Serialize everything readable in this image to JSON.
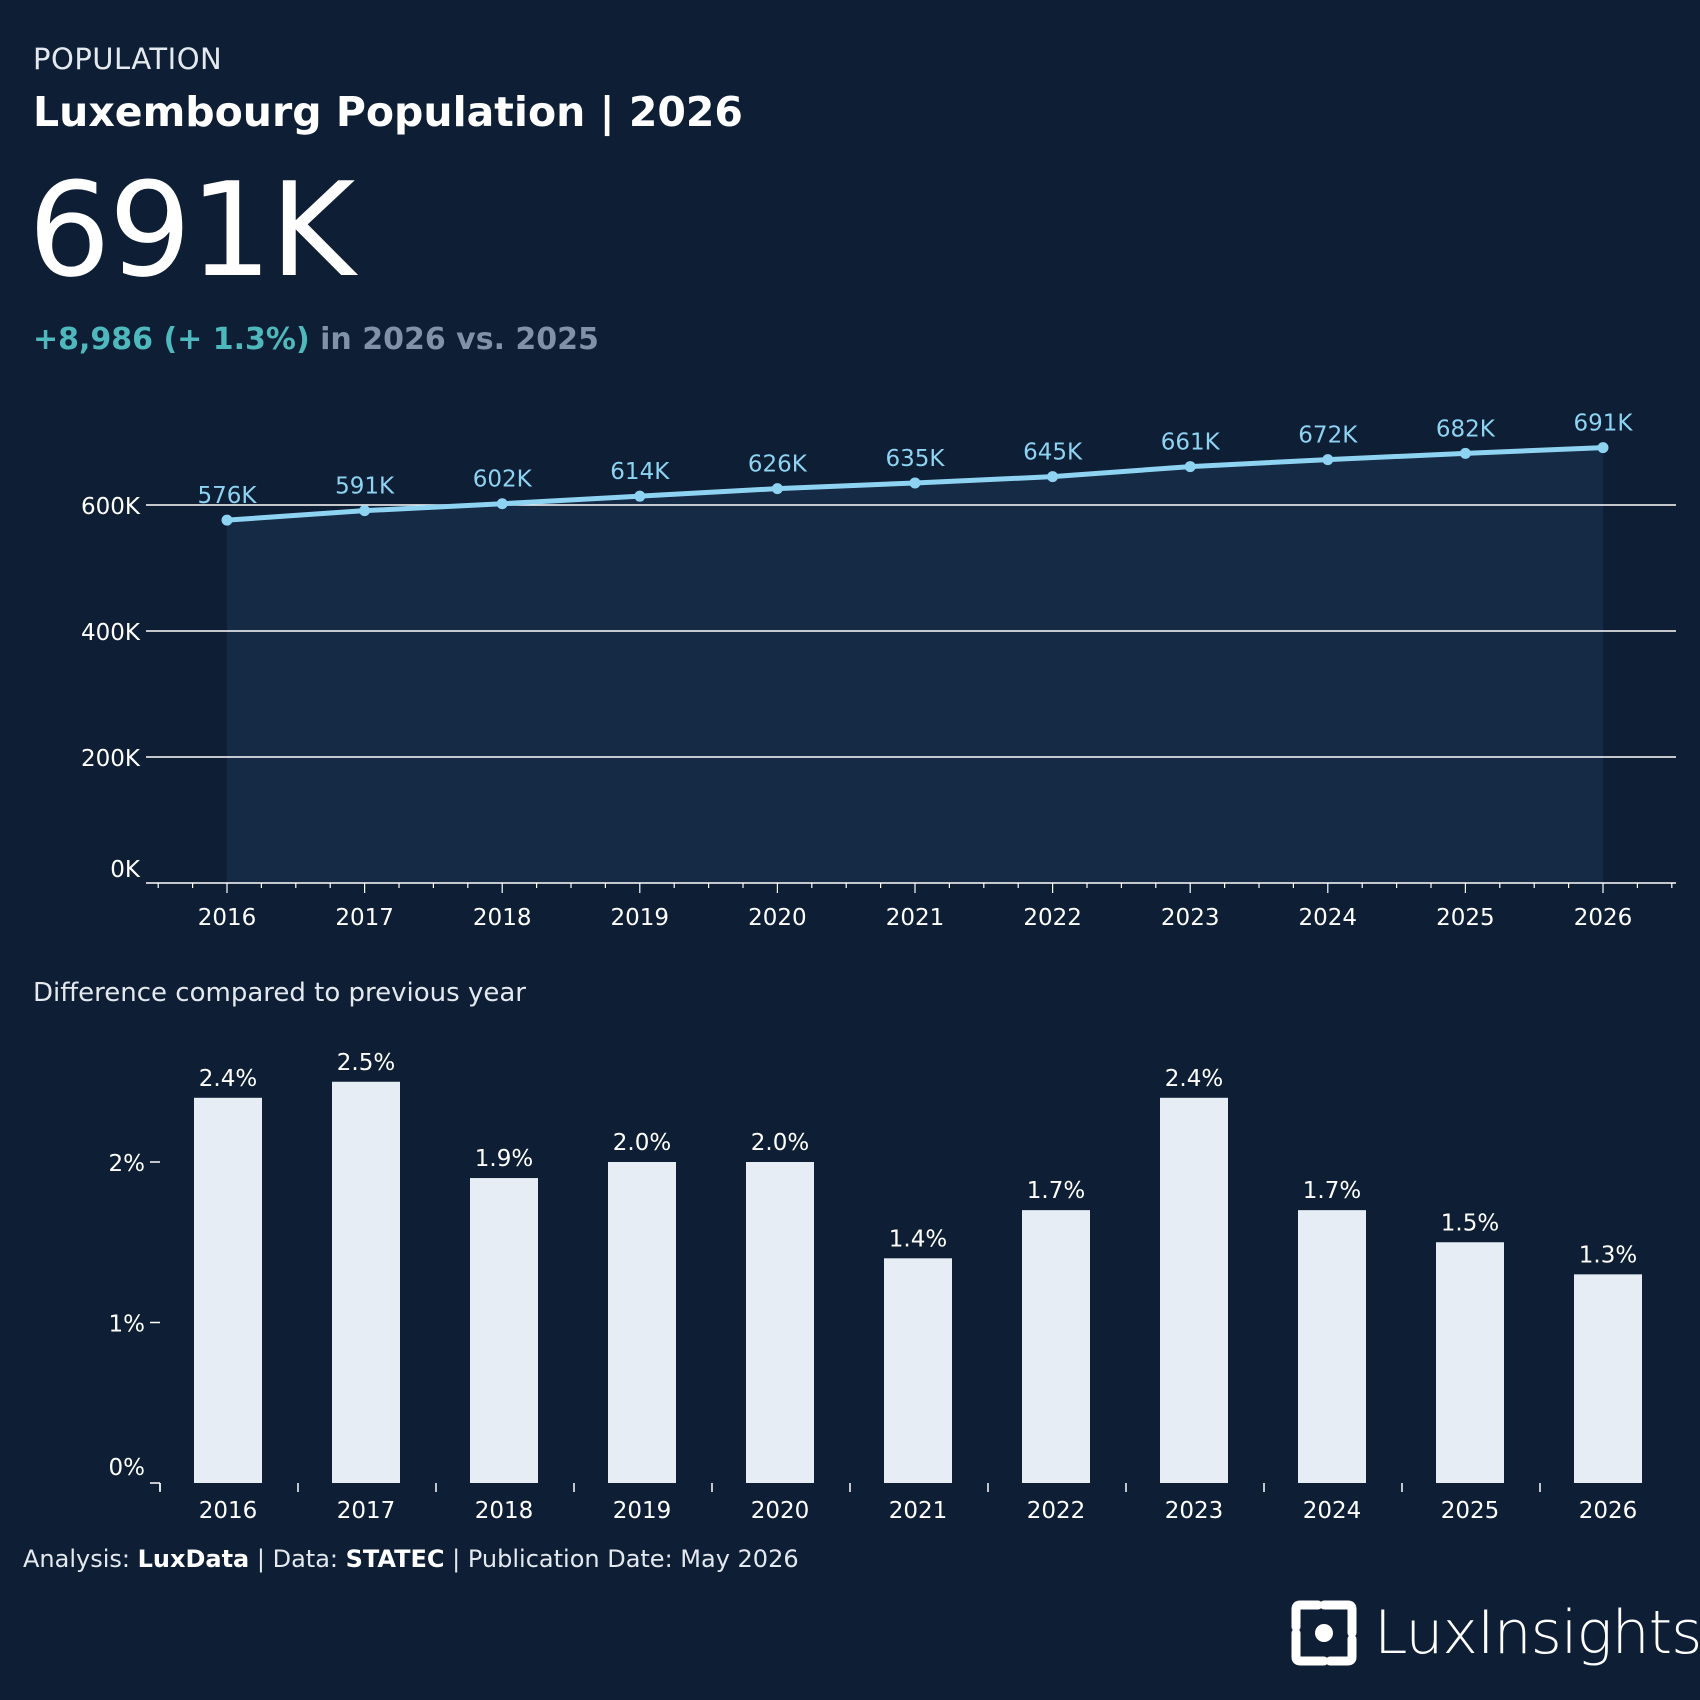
{
  "header": {
    "kicker": "POPULATION",
    "title": "Luxembourg Population | 2026",
    "headline_value": "691K",
    "delta_positive": "+8,986 (+ 1.3%)",
    "delta_rest": " in 2026 vs. 2025"
  },
  "colors": {
    "background": "#0e1f35",
    "line": "#8fd3f2",
    "area": "#152a45",
    "bars": "#e6edf4",
    "positive": "#4fb8bd",
    "muted": "#7f92a8"
  },
  "chart_data": [
    {
      "type": "line",
      "x": [
        "2016",
        "2017",
        "2018",
        "2019",
        "2020",
        "2021",
        "2022",
        "2023",
        "2024",
        "2025",
        "2026"
      ],
      "values": [
        576000,
        591000,
        602000,
        614000,
        626000,
        635000,
        645000,
        661000,
        672000,
        682000,
        691000
      ],
      "data_labels": [
        "576K",
        "591K",
        "602K",
        "614K",
        "626K",
        "635K",
        "645K",
        "661K",
        "672K",
        "682K",
        "691K"
      ],
      "y_ticks": [
        0,
        200000,
        400000,
        600000
      ],
      "y_tick_labels": [
        "0K",
        "200K",
        "400K",
        "600K"
      ],
      "ylim": [
        0,
        700000
      ],
      "grid": true,
      "area_fill": true
    },
    {
      "type": "bar",
      "title": "Difference compared to previous year",
      "categories": [
        "2016",
        "2017",
        "2018",
        "2019",
        "2020",
        "2021",
        "2022",
        "2023",
        "2024",
        "2025",
        "2026"
      ],
      "values": [
        2.4,
        2.5,
        1.9,
        2.0,
        2.0,
        1.4,
        1.7,
        2.4,
        1.7,
        1.5,
        1.3
      ],
      "data_labels": [
        "2.4%",
        "2.5%",
        "1.9%",
        "2.0%",
        "2.0%",
        "1.4%",
        "1.7%",
        "2.4%",
        "1.7%",
        "1.5%",
        "1.3%"
      ],
      "y_ticks": [
        0,
        1,
        2
      ],
      "y_tick_labels": [
        "0%",
        "1%",
        "2%"
      ],
      "ylim": [
        0,
        2.7
      ],
      "grid": false
    }
  ],
  "footer": {
    "analysis_label": "Analysis: ",
    "analysis_value": "LuxData",
    "data_label": " | Data: ",
    "data_value": "STATEC",
    "pub_label": " | Publication Date: May 2026"
  },
  "logo": {
    "text": "LuxInsights",
    "icon": "lux-logo-icon"
  }
}
